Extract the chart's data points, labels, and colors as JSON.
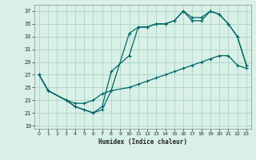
{
  "title": "",
  "xlabel": "Humidex (Indice chaleur)",
  "bg_color": "#d8f0e8",
  "grid_color": "#b0d8c8",
  "line_color": "#006666",
  "xlim": [
    -0.5,
    23.5
  ],
  "ylim": [
    18.5,
    38
  ],
  "xticks": [
    0,
    1,
    2,
    3,
    4,
    5,
    6,
    7,
    8,
    9,
    10,
    11,
    12,
    13,
    14,
    15,
    16,
    17,
    18,
    19,
    20,
    21,
    22,
    23
  ],
  "yticks": [
    19,
    21,
    23,
    25,
    27,
    29,
    31,
    33,
    35,
    37
  ],
  "curve1_x": [
    0,
    1,
    3,
    4,
    5,
    6,
    7,
    8,
    10,
    11,
    12,
    13,
    14,
    15,
    16,
    17,
    18,
    19,
    20,
    21,
    22,
    23
  ],
  "curve1_y": [
    27,
    24.5,
    23,
    22,
    21.5,
    21,
    21.5,
    24.5,
    33.5,
    34.5,
    34.5,
    35,
    35,
    35.5,
    37,
    36,
    36,
    37,
    36.5,
    35,
    33,
    28.5
  ],
  "curve2_x": [
    0,
    1,
    3,
    4,
    5,
    6,
    7,
    8,
    10,
    11,
    12,
    13,
    14,
    15,
    16,
    17,
    18,
    19,
    20,
    21,
    22,
    23
  ],
  "curve2_y": [
    27,
    24.5,
    23,
    22,
    21.5,
    21,
    22,
    27.5,
    30,
    34.5,
    34.5,
    35,
    35,
    35.5,
    37,
    35.5,
    35.5,
    37,
    36.5,
    35,
    33,
    28.5
  ],
  "curve3_x": [
    0,
    1,
    3,
    4,
    5,
    6,
    7,
    8,
    10,
    11,
    12,
    13,
    14,
    15,
    16,
    17,
    18,
    19,
    20,
    21,
    22,
    23
  ],
  "curve3_y": [
    27,
    24.5,
    23,
    22.5,
    22.5,
    23,
    24,
    24.5,
    25,
    25.5,
    26,
    26.5,
    27,
    27.5,
    28,
    28.5,
    29,
    29.5,
    30,
    30,
    28.5,
    28
  ]
}
